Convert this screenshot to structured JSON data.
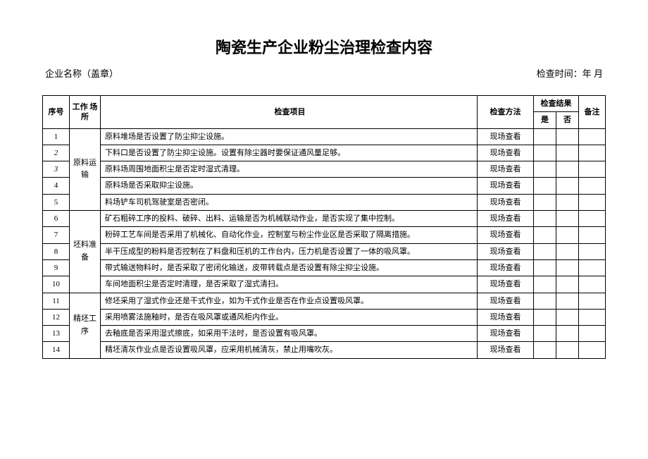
{
  "title": "陶瓷生产企业粉尘治理检查内容",
  "company_label": "企业名称（盖章）",
  "date_label": "检查时间：年 月",
  "headers": {
    "seq": "序号",
    "place": "工作\n场所",
    "item": "检查项目",
    "method": "检查方法",
    "result": "检查结果",
    "yes": "是",
    "no": "否",
    "note": "备注"
  },
  "groups": [
    {
      "place": "原料运\n输",
      "rows": [
        {
          "seq": "1",
          "seq_italic": false,
          "item": "原料堆场是否设置了防尘抑尘设施。",
          "method": "现场查看"
        },
        {
          "seq": "2",
          "seq_italic": true,
          "item": "下料口是否设置了防尘抑尘设施。设置有除尘器时要保证通风量足够。",
          "method": "现场查看"
        },
        {
          "seq": "3",
          "seq_italic": true,
          "item": "原料场周围地面积尘是否定时湿式清理。",
          "method": "现场查看"
        },
        {
          "seq": "4",
          "seq_italic": false,
          "item": "原料场是否采取抑尘设施。",
          "method": "现场查看"
        },
        {
          "seq": "5",
          "seq_italic": false,
          "item": "料场铲车司机驾驶室是否密闭。",
          "method": "现场查看"
        }
      ]
    },
    {
      "place": "坯料准\n备",
      "rows": [
        {
          "seq": "6",
          "seq_italic": false,
          "item": "矿石粗碎工序的投料、破碎、出料、运输是否为机械联动作业，是否实现了集中控制。",
          "method": "现场查看"
        },
        {
          "seq": "7",
          "seq_italic": false,
          "item": "粉碎工艺车间是否采用了机械化、自动化作业，控制室与粉尘作业区是否采取了隔离措施。",
          "method": "现场查看"
        },
        {
          "seq": "8",
          "seq_italic": false,
          "item": "半干压成型的粉料是否控制在了料盘和压机的工作台内，压力机是否设置了一体的吸风罩。",
          "method": "现场查看"
        },
        {
          "seq": "9",
          "seq_italic": false,
          "item": "带式输送物料时，是否采取了密闭化输送，皮带转载点是否设置有除尘抑尘设施。",
          "method": "现场查看"
        },
        {
          "seq": "10",
          "seq_italic": false,
          "item": "车间地面积尘是否定时清理，是否采取了湿式清扫。",
          "method": "现场查看"
        }
      ]
    },
    {
      "place": "精坯工序",
      "rows": [
        {
          "seq": "11",
          "seq_italic": false,
          "item": "修坯采用了湿式作业还是干式作业，如为干式作业是否在作业点设置吸风罩。",
          "method": "现场查看"
        },
        {
          "seq": "12",
          "seq_italic": false,
          "item": "采用喷雾法施釉时，是否在吸风罩或通风柜内作业。",
          "method": "现场查看"
        },
        {
          "seq": "13",
          "seq_italic": false,
          "item": "去釉底是否采用湿式擦底，如采用干法时，是否设置有吸风罩。",
          "method": "现场查看"
        },
        {
          "seq": "14",
          "seq_italic": false,
          "item": "精坯清灰作业点是否设置吸风罩，应采用机械清灰，禁止用嘴吹灰。",
          "method": "现场查看"
        }
      ]
    }
  ]
}
